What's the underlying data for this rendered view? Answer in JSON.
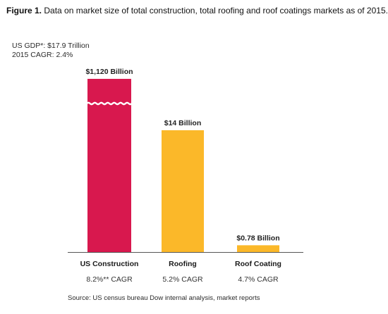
{
  "figure": {
    "label": "Figure 1.",
    "text": "Data on market size of total construction, total roofing and roof coatings markets as of 2015."
  },
  "header_notes": {
    "gdp": "US GDP*: $17.9 Trillion",
    "cagr": "2015 CAGR: 2.4%"
  },
  "source": "Source: US census bureau Dow internal analysis, market reports",
  "chart_data": {
    "type": "bar",
    "categories": [
      "US Construction",
      "Roofing",
      "Roof Coating"
    ],
    "values": [
      1120,
      14,
      0.78
    ],
    "units": "Billion USD",
    "value_labels": [
      "$1,120 Billion",
      "$14 Billion",
      "$0.78 Billion"
    ],
    "cagr_labels": [
      "8.2%** CAGR",
      "5.2% CAGR",
      "4.7% CAGR"
    ],
    "axis_break": {
      "category": "US Construction",
      "style": "wavy"
    },
    "colors": [
      "#d8184e",
      "#fbb829",
      "#fbb829"
    ],
    "grid": false,
    "legend": "none",
    "title": "",
    "xlabel": "",
    "ylabel": ""
  }
}
